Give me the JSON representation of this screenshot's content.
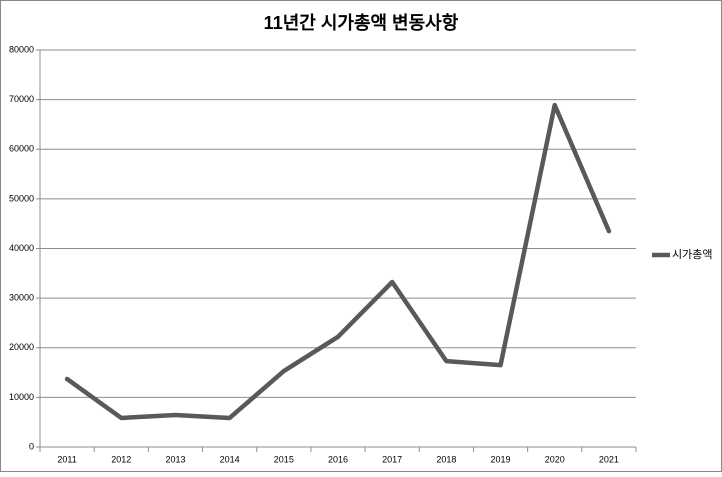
{
  "chart_data": {
    "type": "line",
    "title": "11년간 시가총액 변동사항",
    "categories": [
      "2011",
      "2012",
      "2013",
      "2014",
      "2015",
      "2016",
      "2017",
      "2018",
      "2019",
      "2020",
      "2021"
    ],
    "series": [
      {
        "name": "시가총액",
        "color": "#595959",
        "values": [
          13700,
          5850,
          6450,
          5850,
          15300,
          22200,
          33250,
          17300,
          16500,
          68900,
          43500
        ]
      }
    ],
    "ylim": [
      0,
      80000
    ],
    "yticks": [
      0,
      10000,
      20000,
      30000,
      40000,
      50000,
      60000,
      70000,
      80000
    ],
    "grid": true,
    "legend": "right"
  }
}
